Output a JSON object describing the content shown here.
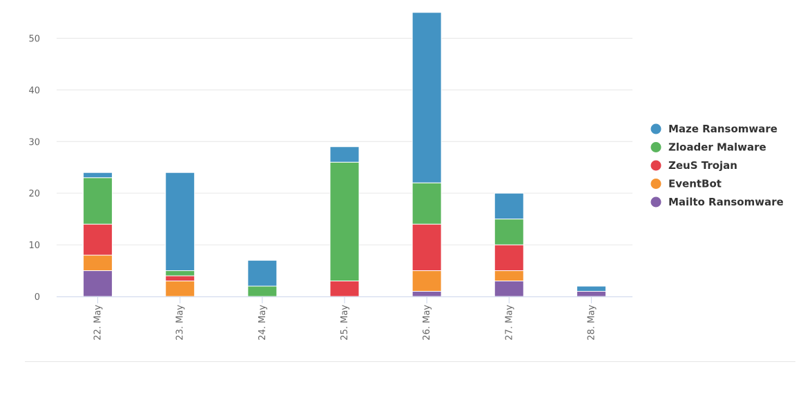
{
  "chart_data": {
    "type": "bar",
    "stacked": true,
    "categories": [
      "22. May",
      "23. May",
      "24. May",
      "25. May",
      "26. May",
      "27. May",
      "28. May"
    ],
    "series": [
      {
        "name": "Maze Ransomware",
        "color": "#4393c3",
        "values": [
          1,
          19,
          5,
          3,
          33,
          5,
          1
        ]
      },
      {
        "name": "Zloader Malware",
        "color": "#5ab55d",
        "values": [
          9,
          1,
          2,
          23,
          8,
          5,
          0
        ]
      },
      {
        "name": "ZeuS Trojan",
        "color": "#e5414a",
        "values": [
          6,
          1,
          0,
          3,
          9,
          5,
          0
        ]
      },
      {
        "name": "EventBot",
        "color": "#f59432",
        "values": [
          3,
          3,
          0,
          0,
          4,
          2,
          0
        ]
      },
      {
        "name": "Mailto Ransomware",
        "color": "#8461a9",
        "values": [
          5,
          0,
          0,
          0,
          1,
          3,
          1
        ]
      }
    ],
    "stack_order_bottom_to_top": [
      "Mailto Ransomware",
      "EventBot",
      "ZeuS Trojan",
      "Zloader Malware",
      "Maze Ransomware"
    ],
    "y_ticks": [
      "0",
      "10",
      "20",
      "30",
      "40",
      "50"
    ],
    "ylim": [
      0,
      55
    ],
    "grid": true,
    "x_label_rotation": "vertical",
    "legend_position": "right"
  }
}
